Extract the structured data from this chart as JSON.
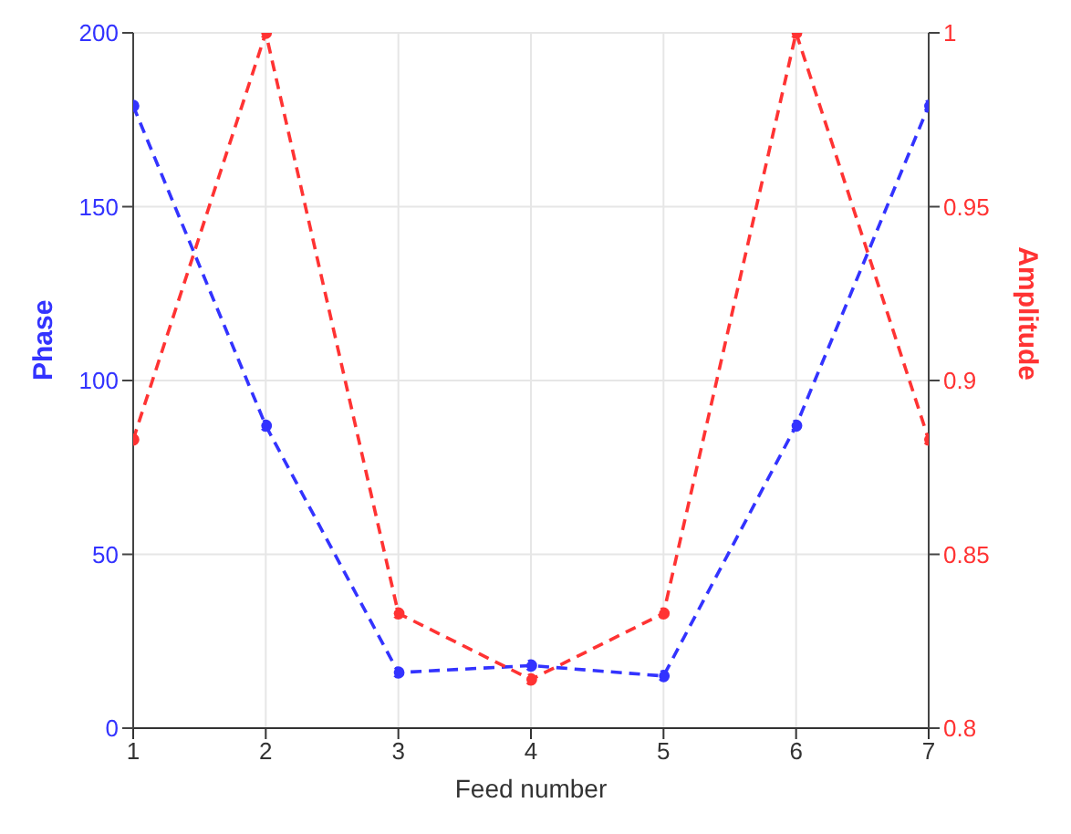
{
  "chart_data": {
    "type": "line",
    "xlabel": "Feed number",
    "ylabel": "Phase",
    "y2label": "Amplitude",
    "x": [
      1,
      2,
      3,
      4,
      5,
      6,
      7
    ],
    "series": [
      {
        "color": "#3333ff",
        "values": [
          179,
          87,
          16,
          18,
          15,
          87,
          179
        ]
      },
      {
        "color": "#ff3333",
        "axis": "y2",
        "values": [
          0.883,
          1,
          0.833,
          0.814,
          0.833,
          1,
          0.883
        ]
      }
    ],
    "xlim": [
      1,
      7
    ],
    "xticks": [
      1,
      2,
      3,
      4,
      5,
      6,
      7
    ],
    "ylim": [
      0,
      200
    ],
    "yticks": [
      0,
      50,
      100,
      150,
      200
    ],
    "y2lim": [
      0.8,
      1
    ],
    "y2ticks": [
      0.8,
      0.85,
      0.9,
      0.95,
      1
    ],
    "grid": true,
    "marker": "circle",
    "line_style": "dashed"
  }
}
